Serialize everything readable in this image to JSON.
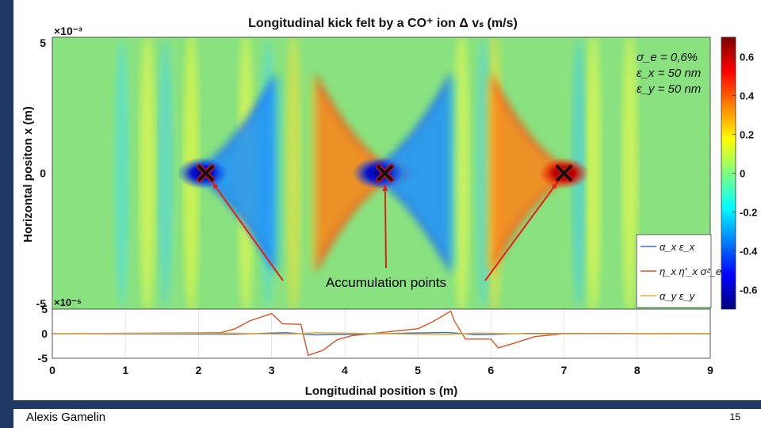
{
  "slide": {
    "author": "Alexis Gamelin",
    "page_number": "15"
  },
  "chart_data": [
    {
      "type": "heatmap",
      "title": "Longitudinal kick felt by a CO⁺ ion Δ vₛ (m/s)",
      "ylabel": "Horizontal positon x (m)",
      "y_exponent": "×10⁻³",
      "y_ticks": [
        "5",
        "0",
        "-5"
      ],
      "ylim": [
        -5,
        5
      ],
      "xlim": [
        0,
        9
      ],
      "colorbar": {
        "ticks": [
          "0.6",
          "0.4",
          "0.2",
          "0",
          "-0.2",
          "-0.4",
          "-0.6"
        ],
        "range": [
          -0.7,
          0.7
        ],
        "colormap": "jet"
      },
      "lobes": [
        {
          "x": 2.4,
          "sign": -1
        },
        {
          "x": 4.2,
          "sign": 1
        },
        {
          "x": 4.8,
          "sign": -1
        },
        {
          "x": 6.6,
          "sign": 1
        }
      ],
      "accumulation_points": [
        {
          "x": 2.1,
          "y": 0
        },
        {
          "x": 4.55,
          "y": 0
        },
        {
          "x": 7.0,
          "y": 0
        }
      ],
      "annotation": "Accumulation points",
      "params_legend": [
        "σ_e = 0,6%",
        "ε_x = 50 nm",
        "ε_y = 50 nm"
      ]
    },
    {
      "type": "line",
      "xlabel": "Longitudinal position s (m)",
      "y_exponent": "×10⁻⁵",
      "x_ticks": [
        "0",
        "1",
        "2",
        "3",
        "4",
        "5",
        "6",
        "7",
        "8",
        "9"
      ],
      "y_ticks": [
        "5",
        "0",
        "-5"
      ],
      "xlim": [
        0,
        9
      ],
      "ylim": [
        -5,
        5
      ],
      "legend": [
        {
          "label": "α_x ε_x",
          "color": "#3a6fc4"
        },
        {
          "label": "η_x η'_x σ²_e",
          "color": "#d0572a"
        },
        {
          "label": "α_y ε_y",
          "color": "#e8b13a"
        }
      ],
      "series": [
        {
          "name": "η_x η'_x σ²_e",
          "color": "#d0572a",
          "x": [
            0,
            2.3,
            2.5,
            2.7,
            3.0,
            3.15,
            3.4,
            3.5,
            3.7,
            3.9,
            4.1,
            4.6,
            5.0,
            5.2,
            5.45,
            5.5,
            5.65,
            6.0,
            6.1,
            6.3,
            6.6,
            7.0,
            9
          ],
          "y": [
            0,
            0.2,
            1,
            2.6,
            4.1,
            2.0,
            1.9,
            -4.4,
            -3.4,
            -1.2,
            -0.4,
            0.4,
            1.0,
            2.4,
            4.6,
            2.6,
            -1.1,
            -1.1,
            -2.9,
            -2.0,
            -0.6,
            0,
            0
          ]
        },
        {
          "name": "α_x ε_x",
          "color": "#3a6fc4",
          "x": [
            0,
            2.5,
            3.2,
            3.6,
            4.5,
            5.4,
            5.8,
            6.5,
            9
          ],
          "y": [
            0,
            -0.1,
            0.2,
            -0.25,
            0,
            0.25,
            -0.2,
            0.05,
            0
          ]
        },
        {
          "name": "α_y ε_y",
          "color": "#e8b13a",
          "x": [
            0,
            2.5,
            3.2,
            3.6,
            4.5,
            5.4,
            5.8,
            6.5,
            9
          ],
          "y": [
            0,
            0.1,
            -0.15,
            0.2,
            0,
            -0.2,
            0.15,
            -0.05,
            0
          ]
        }
      ]
    }
  ]
}
